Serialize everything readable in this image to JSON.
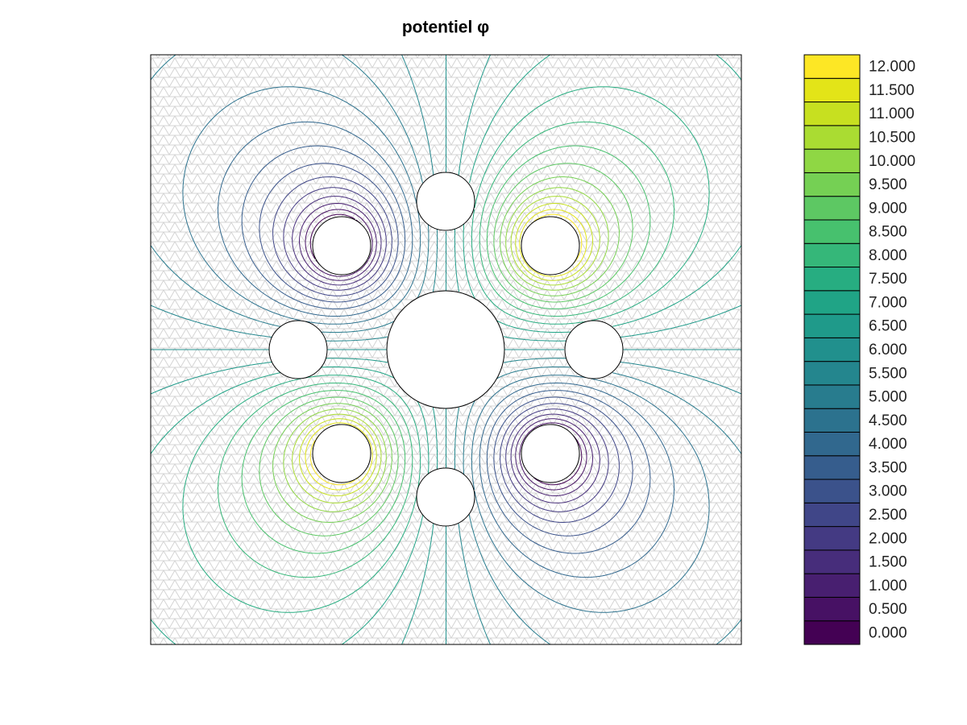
{
  "chart_data": {
    "type": "contour",
    "title": "potentiel φ",
    "colorbar_ticks": [
      {
        "value": 0,
        "label": "0.000"
      },
      {
        "value": 0.5,
        "label": "0.500"
      },
      {
        "value": 1,
        "label": "1.000"
      },
      {
        "value": 1.5,
        "label": "1.500"
      },
      {
        "value": 2,
        "label": "2.000"
      },
      {
        "value": 2.5,
        "label": "2.500"
      },
      {
        "value": 3,
        "label": "3.000"
      },
      {
        "value": 3.5,
        "label": "3.500"
      },
      {
        "value": 4,
        "label": "4.000"
      },
      {
        "value": 4.5,
        "label": "4.500"
      },
      {
        "value": 5,
        "label": "5.000"
      },
      {
        "value": 5.5,
        "label": "5.500"
      },
      {
        "value": 6,
        "label": "6.000"
      },
      {
        "value": 6.5,
        "label": "6.500"
      },
      {
        "value": 7,
        "label": "7.000"
      },
      {
        "value": 7.5,
        "label": "7.500"
      },
      {
        "value": 8,
        "label": "8.000"
      },
      {
        "value": 8.5,
        "label": "8.500"
      },
      {
        "value": 9,
        "label": "9.000"
      },
      {
        "value": 9.5,
        "label": "9.500"
      },
      {
        "value": 10,
        "label": "10.000"
      },
      {
        "value": 10.5,
        "label": "10.500"
      },
      {
        "value": 11,
        "label": "11.000"
      },
      {
        "value": 11.5,
        "label": "11.500"
      },
      {
        "value": 12,
        "label": "12.000"
      }
    ],
    "colors": [
      "#440154",
      "#471164",
      "#481f70",
      "#472d7b",
      "#443a83",
      "#404688",
      "#3b528b",
      "#365d8d",
      "#31688e",
      "#2c728e",
      "#287c8e",
      "#24868e",
      "#21908d",
      "#1f9a8a",
      "#20a486",
      "#27ad81",
      "#35b779",
      "#47c16e",
      "#5dc863",
      "#75d054",
      "#8fd744",
      "#aadc32",
      "#c7e020",
      "#e3e418",
      "#fde725"
    ]
  }
}
